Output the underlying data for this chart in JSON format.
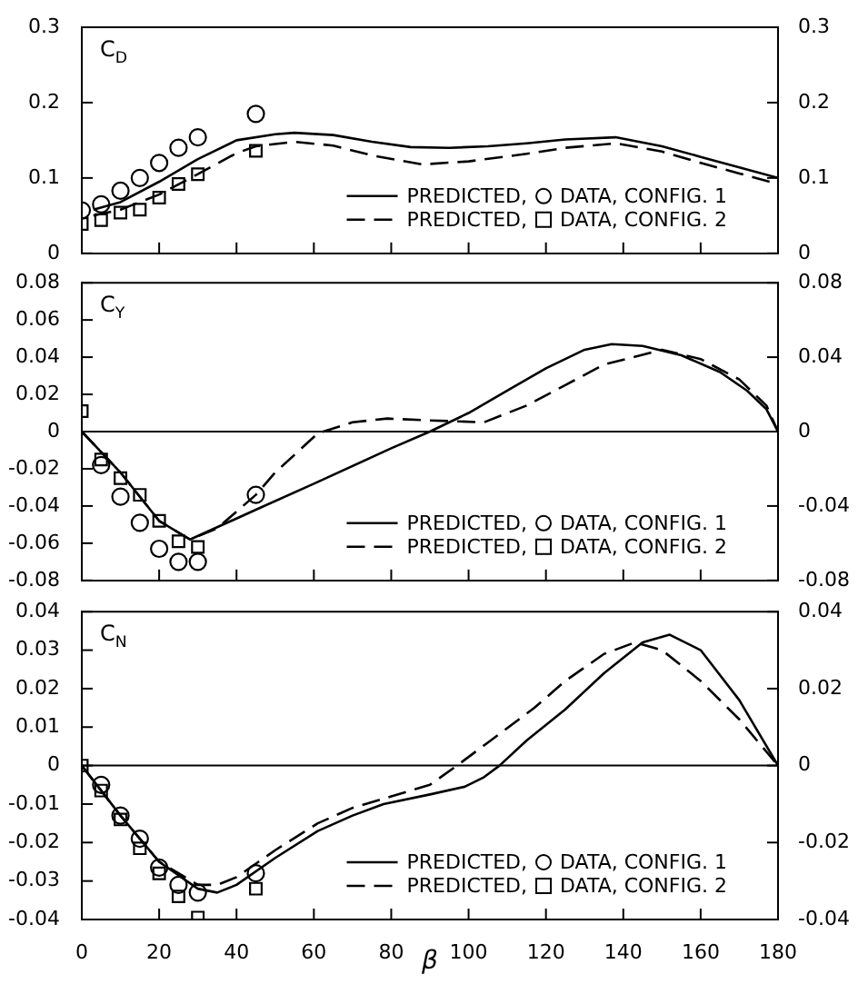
{
  "chart_data": [
    {
      "type": "line",
      "ylabel": "C$_{D}$",
      "xlim": [
        0,
        180
      ],
      "xticks": [
        0,
        20,
        40,
        60,
        80,
        100,
        120,
        140,
        160,
        180
      ],
      "ylim": [
        0,
        0.3
      ],
      "yticks": [
        0,
        0.1,
        0.2,
        0.3
      ],
      "y2lim": [
        0,
        0.3
      ],
      "y2ticks": [
        0,
        0.1,
        0.2,
        0.3
      ],
      "tick_labels": "y",
      "legend": "bottom right",
      "series": [
        {
          "name": "PREDICTED,",
          "type": "line",
          "line_style": "solid",
          "marker": "none",
          "color": "#000000",
          "x": [
            3,
            10,
            20,
            30,
            40,
            50,
            55,
            65,
            75,
            85,
            95,
            105,
            115,
            125,
            138,
            150,
            160,
            170,
            180
          ],
          "values": [
            0.058,
            0.068,
            0.095,
            0.125,
            0.15,
            0.158,
            0.16,
            0.157,
            0.148,
            0.141,
            0.14,
            0.142,
            0.146,
            0.151,
            0.154,
            0.142,
            0.128,
            0.114,
            0.1
          ]
        },
        {
          "name": "DATA, CONFIG. 1",
          "type": "scatter",
          "marker": "circle",
          "color": "#000000",
          "x": [
            0,
            5,
            10,
            15,
            20,
            25,
            30,
            45
          ],
          "values": [
            0.057,
            0.065,
            0.083,
            0.1,
            0.12,
            0.14,
            0.154,
            0.185
          ]
        },
        {
          "name": "PREDICTED,",
          "type": "line",
          "line_style": "dashed",
          "marker": "none",
          "color": "#000000",
          "x": [
            3,
            10,
            20,
            30,
            40,
            45,
            55,
            65,
            75,
            88,
            100,
            115,
            125,
            138,
            150,
            160,
            170,
            180
          ],
          "values": [
            0.05,
            0.058,
            0.078,
            0.105,
            0.133,
            0.142,
            0.148,
            0.143,
            0.13,
            0.118,
            0.122,
            0.132,
            0.14,
            0.146,
            0.135,
            0.12,
            0.106,
            0.092
          ]
        },
        {
          "name": "DATA, CONFIG. 2",
          "type": "scatter",
          "marker": "square",
          "color": "#000000",
          "x": [
            0,
            5,
            10,
            15,
            20,
            25,
            30,
            45
          ],
          "values": [
            0.039,
            0.044,
            0.054,
            0.058,
            0.074,
            0.092,
            0.105,
            0.136
          ]
        }
      ]
    },
    {
      "type": "line",
      "ylabel": "C$_{Y}$",
      "xlim": [
        0,
        180
      ],
      "xticks": [
        0,
        20,
        40,
        60,
        80,
        100,
        120,
        140,
        160,
        180
      ],
      "ylim": [
        -0.08,
        0.08
      ],
      "yticks": [
        -0.08,
        -0.06,
        -0.04,
        -0.02,
        0,
        0.02,
        0.04,
        0.06,
        0.08
      ],
      "y2lim": [
        -0.08,
        0.08
      ],
      "y2ticks": [
        -0.08,
        -0.04,
        0,
        0.04,
        0.08
      ],
      "tick_labels": "y",
      "legend": "bottom right",
      "ref_lines": [
        {
          "axis": "y",
          "value": 0
        }
      ],
      "series": [
        {
          "name": "PREDICTED,",
          "type": "line",
          "line_style": "solid",
          "marker": "none",
          "color": "#000000",
          "x": [
            0,
            10,
            20,
            28,
            45,
            60,
            80,
            90,
            100,
            110,
            120,
            130,
            137,
            145,
            155,
            165,
            172,
            177,
            180
          ],
          "values": [
            0,
            -0.022,
            -0.048,
            -0.058,
            -0.042,
            -0.028,
            -0.009,
            0,
            0.01,
            0.022,
            0.034,
            0.044,
            0.047,
            0.046,
            0.041,
            0.032,
            0.022,
            0.012,
            0
          ]
        },
        {
          "name": "DATA, CONFIG. 1",
          "type": "scatter",
          "marker": "circle",
          "color": "#000000",
          "x": [
            5,
            10,
            15,
            20,
            25,
            30,
            45
          ],
          "values": [
            -0.018,
            -0.035,
            -0.049,
            -0.063,
            -0.07,
            -0.07,
            -0.034
          ]
        },
        {
          "name": "PREDICTED,",
          "type": "line",
          "line_style": "dashed",
          "marker": "none",
          "color": "#000000",
          "x": [
            0,
            10,
            20,
            28,
            35,
            45,
            50,
            61,
            70,
            79,
            90,
            104,
            115,
            125,
            135,
            150,
            160,
            170,
            177,
            180
          ],
          "values": [
            0,
            -0.022,
            -0.048,
            -0.058,
            -0.052,
            -0.034,
            -0.022,
            -0.001,
            0.005,
            0.007,
            0.006,
            0.005,
            0.014,
            0.025,
            0.036,
            0.044,
            0.039,
            0.028,
            0.014,
            0
          ]
        },
        {
          "name": "DATA, CONFIG. 2",
          "type": "scatter",
          "marker": "square",
          "color": "#000000",
          "x": [
            0,
            5,
            10,
            15,
            20,
            25,
            30
          ],
          "values": [
            0.011,
            -0.015,
            -0.025,
            -0.034,
            -0.048,
            -0.059,
            -0.062
          ]
        }
      ]
    },
    {
      "type": "line",
      "ylabel": "C$_{N}$",
      "xlabel": "β",
      "xlim": [
        0,
        180
      ],
      "xticks": [
        0,
        20,
        40,
        60,
        80,
        100,
        120,
        140,
        160,
        180
      ],
      "ylim": [
        -0.04,
        0.04
      ],
      "yticks": [
        -0.04,
        -0.03,
        -0.02,
        -0.01,
        0,
        0.01,
        0.02,
        0.03,
        0.04
      ],
      "y2lim": [
        -0.04,
        0.04
      ],
      "y2ticks": [
        -0.04,
        -0.02,
        0,
        0.02,
        0.04
      ],
      "legend": "bottom right",
      "ref_lines": [
        {
          "axis": "y",
          "value": 0
        }
      ],
      "series": [
        {
          "name": "PREDICTED,",
          "type": "line",
          "line_style": "solid",
          "marker": "none",
          "color": "#000000",
          "x": [
            0,
            10,
            20,
            30,
            35,
            40,
            50,
            61,
            70,
            78,
            90,
            99,
            104,
            108,
            115,
            125,
            135,
            145,
            152,
            160,
            170,
            180
          ],
          "values": [
            0,
            -0.013,
            -0.025,
            -0.032,
            -0.033,
            -0.031,
            -0.024,
            -0.017,
            -0.013,
            -0.01,
            -0.0075,
            -0.0055,
            -0.003,
            0,
            0.0065,
            0.0146,
            0.024,
            0.032,
            0.034,
            0.03,
            0.017,
            0
          ]
        },
        {
          "name": "DATA, CONFIG. 1",
          "type": "scatter",
          "marker": "circle",
          "color": "#000000",
          "x": [
            5,
            10,
            15,
            20,
            25,
            30,
            45
          ],
          "values": [
            -0.005,
            -0.013,
            -0.019,
            -0.0265,
            -0.031,
            -0.033,
            -0.028
          ]
        },
        {
          "name": "PREDICTED,",
          "type": "line",
          "line_style": "dashed",
          "marker": "none",
          "color": "#000000",
          "x": [
            0,
            10,
            20,
            30,
            35,
            40,
            50,
            61,
            70,
            80,
            90,
            97,
            105,
            117,
            125,
            135,
            143,
            150,
            160,
            170,
            180
          ],
          "values": [
            0,
            -0.013,
            -0.025,
            -0.031,
            -0.031,
            -0.029,
            -0.022,
            -0.015,
            -0.011,
            -0.008,
            -0.005,
            0,
            0.006,
            0.015,
            0.022,
            0.029,
            0.032,
            0.03,
            0.022,
            0.012,
            0
          ]
        },
        {
          "name": "DATA, CONFIG. 2",
          "type": "scatter",
          "marker": "square",
          "color": "#000000",
          "x": [
            0,
            5,
            10,
            15,
            20,
            25,
            30,
            45
          ],
          "values": [
            0,
            -0.0065,
            -0.014,
            -0.0215,
            -0.028,
            -0.034,
            -0.0395,
            -0.032
          ]
        }
      ]
    }
  ]
}
